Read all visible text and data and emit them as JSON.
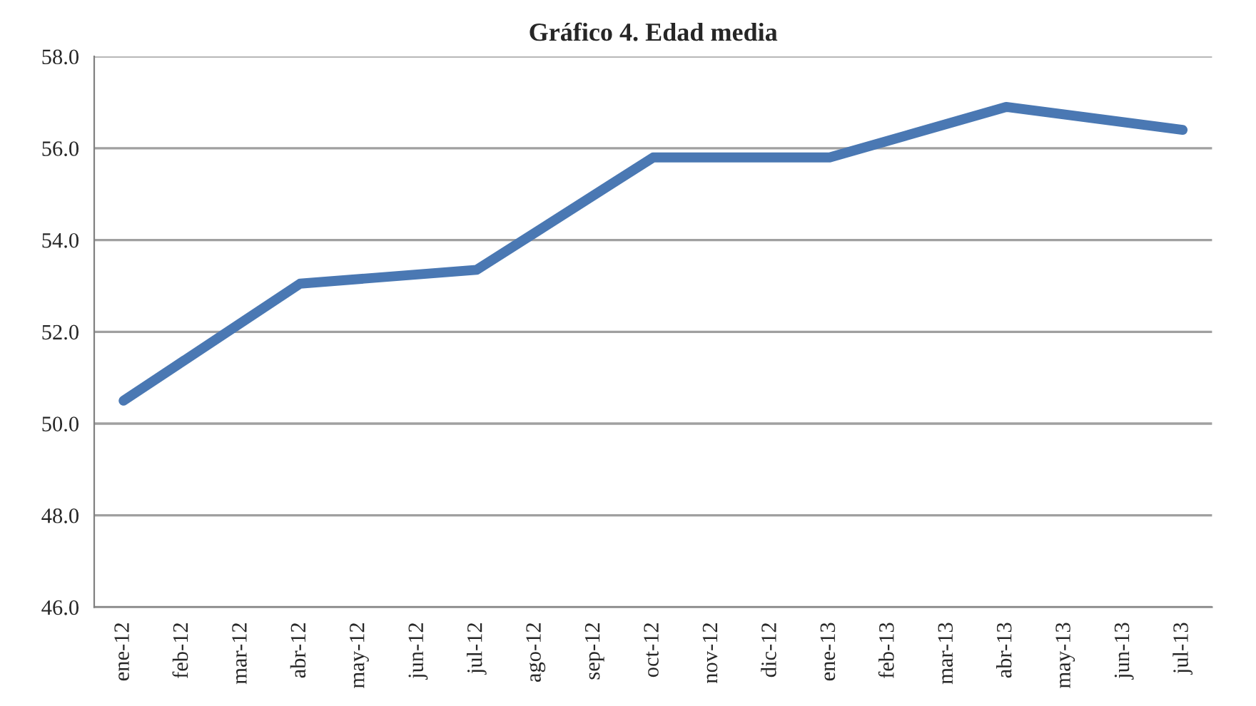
{
  "chart_data": {
    "type": "line",
    "title": "Gráfico 4. Edad media",
    "categories": [
      "ene-12",
      "feb-12",
      "mar-12",
      "abr-12",
      "may-12",
      "jun-12",
      "jul-12",
      "ago-12",
      "sep-12",
      "oct-12",
      "nov-12",
      "dic-12",
      "ene-13",
      "feb-13",
      "mar-13",
      "abr-13",
      "may-13",
      "jun-13",
      "jul-13"
    ],
    "series": [
      {
        "color": "#4a78b3",
        "values": [
          50.5,
          null,
          null,
          53.05,
          null,
          null,
          53.35,
          null,
          null,
          55.8,
          null,
          null,
          55.8,
          null,
          null,
          56.9,
          null,
          null,
          56.4
        ]
      }
    ],
    "ylim": [
      46,
      58
    ],
    "yticks": [
      {
        "value": 46,
        "label": "46.0"
      },
      {
        "value": 48,
        "label": "48.0"
      },
      {
        "value": 50,
        "label": "50.0"
      },
      {
        "value": 52,
        "label": "52.0"
      },
      {
        "value": 54,
        "label": "54.0"
      },
      {
        "value": 56,
        "label": "56.0"
      },
      {
        "value": 58,
        "label": "58.0"
      }
    ],
    "grid": "y",
    "marker": "none",
    "line_style": "solid",
    "legend": false
  }
}
